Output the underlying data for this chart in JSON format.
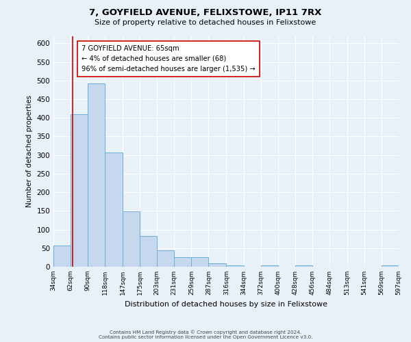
{
  "title": "7, GOYFIELD AVENUE, FELIXSTOWE, IP11 7RX",
  "subtitle": "Size of property relative to detached houses in Felixstowe",
  "xlabel": "Distribution of detached houses by size in Felixstowe",
  "ylabel": "Number of detached properties",
  "bin_edges": [
    34,
    62,
    90,
    118,
    147,
    175,
    203,
    231,
    259,
    287,
    316,
    344,
    372,
    400,
    428,
    456,
    484,
    513,
    541,
    569,
    597
  ],
  "bar_heights": [
    57,
    410,
    493,
    307,
    149,
    82,
    45,
    25,
    25,
    10,
    3,
    0,
    3,
    0,
    3,
    0,
    0,
    0,
    0,
    3
  ],
  "bar_color": "#c5d8ed",
  "bar_edge_color": "#6aaed6",
  "background_color": "#e8f0f8",
  "grid_color": "#ffffff",
  "vline_x": 65,
  "vline_color": "#cc0000",
  "annotation_text": "7 GOYFIELD AVENUE: 65sqm\n← 4% of detached houses are smaller (68)\n96% of semi-detached houses are larger (1,535) →",
  "annotation_box_color": "#ffffff",
  "annotation_box_edge": "#cc0000",
  "ylim": [
    0,
    620
  ],
  "yticks": [
    0,
    50,
    100,
    150,
    200,
    250,
    300,
    350,
    400,
    450,
    500,
    550,
    600
  ],
  "footer_line1": "Contains HM Land Registry data © Crown copyright and database right 2024.",
  "footer_line2": "Contains public sector information licensed under the Open Government Licence v3.0."
}
